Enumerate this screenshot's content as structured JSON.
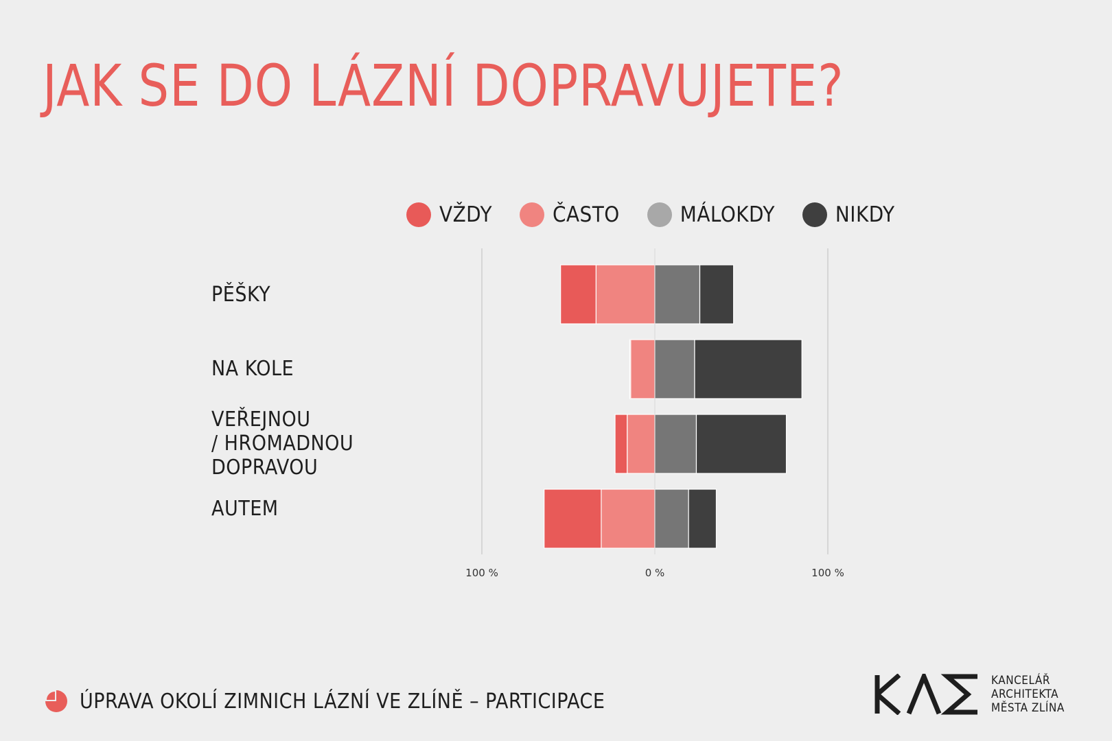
{
  "title": "JAK SE DO LÁZNÍ DOPRAVUJETE?",
  "colors": {
    "title": "#e85e5a",
    "vzdy": "#e85a58",
    "casto": "#f08480",
    "malokdy": "#767676",
    "nikdy": "#3f3f3f",
    "axis": "#bdbdbd",
    "background": "#eeeeee"
  },
  "legend": [
    {
      "label": "VŽDY",
      "color": "#e85a58"
    },
    {
      "label": "ČASTO",
      "color": "#f08480"
    },
    {
      "label": "MÁLOKDY",
      "color": "#a8a8a8"
    },
    {
      "label": "NIKDY",
      "color": "#3f3f3f"
    }
  ],
  "chart_data": {
    "type": "bar",
    "orientation": "horizontal-diverging-stacked",
    "categories": [
      "PĚŠKY",
      "NA KOLE",
      "VEŘEJNOU\n/ HROMADNOU\nDOPRAVOU",
      "AUTEM"
    ],
    "series": [
      {
        "name": "VŽDY",
        "side": "left",
        "values": [
          20.5,
          0.5,
          7,
          33
        ]
      },
      {
        "name": "ČASTO",
        "side": "left",
        "values": [
          34,
          14,
          16,
          31
        ]
      },
      {
        "name": "MÁLOKDY",
        "side": "right",
        "values": [
          26,
          23,
          24,
          19.5
        ]
      },
      {
        "name": "NIKDY",
        "side": "right",
        "values": [
          19.5,
          62,
          52,
          16
        ]
      }
    ],
    "xlim": [
      -100,
      100
    ],
    "x_tick_labels": [
      "100 %",
      "0 %",
      "100 %"
    ],
    "x_tick_values": [
      -100,
      0,
      100
    ],
    "grid": false,
    "legend_position": "top"
  },
  "footer": {
    "text": "ÚPRAVA OKOLÍ ZIMNICH LÁZNÍ VE ZLÍNĚ – PARTICIPACE"
  },
  "logo": {
    "mark_text": "KAE",
    "text": "KANCELÁŘ\nARCHITEKTA\nMĚSTA ZLÍNA"
  }
}
